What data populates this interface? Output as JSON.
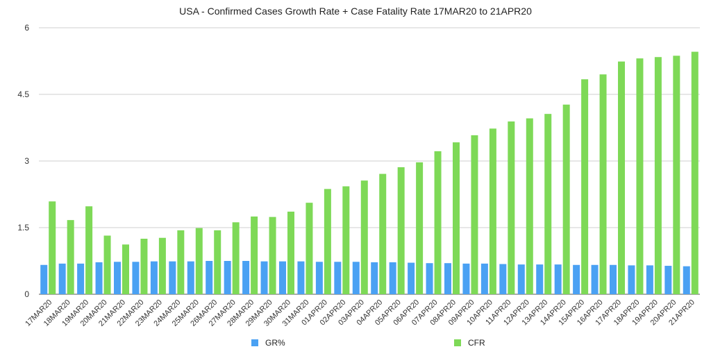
{
  "chart_data": {
    "type": "bar",
    "title": "USA - Confirmed Cases Growth Rate + Case Fatality Rate 17MAR20 to 21APR20",
    "categories": [
      "17MAR20",
      "18MAR20",
      "19MAR20",
      "20MAR20",
      "21MAR20",
      "22MAR20",
      "23MAR20",
      "24MAR20",
      "25MAR20",
      "26MAR20",
      "27MAR20",
      "28MAR20",
      "29MAR20",
      "30MAR20",
      "31MAR20",
      "01APR20",
      "02APR20",
      "03APR20",
      "04APR20",
      "05APR20",
      "06APR20",
      "07APR20",
      "08APR20",
      "09APR20",
      "10APR20",
      "11APR20",
      "12APR20",
      "13APR20",
      "14APR20",
      "15APR20",
      "16APR20",
      "17APR20",
      "18APR20",
      "19APR20",
      "20APR20",
      "21APR20"
    ],
    "series": [
      {
        "name": "GR%",
        "color": "#4aa1f3",
        "values": [
          0.66,
          0.69,
          0.69,
          0.72,
          0.73,
          0.73,
          0.74,
          0.74,
          0.74,
          0.75,
          0.75,
          0.75,
          0.74,
          0.74,
          0.74,
          0.73,
          0.73,
          0.73,
          0.72,
          0.72,
          0.71,
          0.7,
          0.7,
          0.69,
          0.69,
          0.68,
          0.67,
          0.67,
          0.67,
          0.66,
          0.66,
          0.66,
          0.65,
          0.65,
          0.64,
          0.63
        ]
      },
      {
        "name": "CFR",
        "color": "#7ed957",
        "values": [
          2.09,
          1.67,
          1.98,
          1.32,
          1.12,
          1.25,
          1.27,
          1.44,
          1.49,
          1.44,
          1.62,
          1.75,
          1.74,
          1.86,
          2.06,
          2.37,
          2.43,
          2.56,
          2.71,
          2.86,
          2.97,
          3.22,
          3.42,
          3.58,
          3.73,
          3.89,
          3.96,
          4.06,
          4.27,
          4.84,
          4.95,
          5.24,
          5.31,
          5.34,
          5.37,
          5.46
        ]
      }
    ],
    "yticks": [
      "0",
      "1.5",
      "3",
      "4.5",
      "6"
    ],
    "ylim": [
      0,
      6
    ],
    "grid": true,
    "legend_position": "bottom"
  }
}
